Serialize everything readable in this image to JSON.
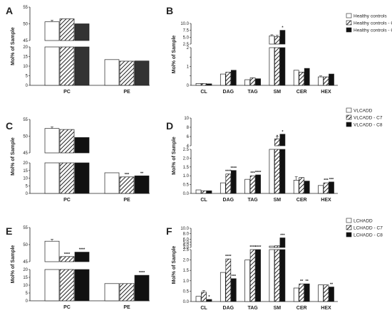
{
  "chart_data": [
    {
      "panel": "A",
      "type": "bar",
      "ylabel": "Mol% of Sample",
      "categories": [
        "PC",
        "PE"
      ],
      "series": [
        {
          "name": "",
          "values": [
            50.6,
            13.4
          ],
          "errors": [
            0.5,
            0
          ]
        },
        {
          "name": "",
          "values": [
            51.5,
            12.6
          ],
          "errors": [
            0,
            0
          ]
        },
        {
          "name": "",
          "values": [
            50.0,
            12.7
          ],
          "errors": [
            0,
            0
          ]
        }
      ],
      "ybreak": {
        "lower": [
          0,
          20
        ],
        "upper": [
          45,
          55
        ]
      },
      "lower_ticks": [
        0,
        5,
        10,
        15,
        20
      ],
      "upper_ticks": [
        45,
        50,
        55
      ],
      "stars": [
        [
          "",
          ""
        ],
        [
          "",
          ""
        ],
        [
          "",
          ""
        ]
      ]
    },
    {
      "panel": "B",
      "type": "bar",
      "ylabel": "Mol% of Sample",
      "categories": [
        "CL",
        "DAG",
        "TAG",
        "SM",
        "CER",
        "HEX"
      ],
      "series": [
        {
          "name": "Healthy controls",
          "values": [
            0.1,
            0.6,
            0.3,
            5.5,
            0.8,
            0.45
          ],
          "errors": [
            0,
            0,
            0,
            0.4,
            0,
            0.05
          ]
        },
        {
          "name": "Healthy controls - C7",
          "values": [
            0.1,
            0.7,
            0.4,
            5.2,
            0.7,
            0.45
          ],
          "errors": [
            0,
            0,
            0,
            0.5,
            0,
            0
          ]
        },
        {
          "name": "Healthy controls - C8",
          "values": [
            0.08,
            0.8,
            0.35,
            7.5,
            0.9,
            0.6
          ],
          "errors": [
            0,
            0,
            0,
            0,
            0,
            0
          ]
        }
      ],
      "ybreak": {
        "lower": [
          0,
          2
        ],
        "upper": [
          2.5,
          10
        ]
      },
      "lower_ticks": [
        0,
        0.5,
        1,
        1.5,
        2
      ],
      "upper_ticks": [
        2.5,
        5,
        7.5,
        10
      ],
      "lower_tick_labels": [
        "0",
        "",
        "1",
        "",
        "2"
      ],
      "upper_tick_labels": [
        "2.5",
        "5.0",
        "7.5",
        "10.0"
      ],
      "stars": [
        [
          "",
          "",
          "",
          "",
          "",
          ""
        ],
        [
          "",
          "",
          "",
          "",
          "",
          ""
        ],
        [
          "",
          "",
          "",
          "*",
          "",
          ""
        ]
      ]
    },
    {
      "panel": "C",
      "type": "bar",
      "ylabel": "Mol% of Sample",
      "categories": [
        "PC",
        "PE"
      ],
      "series": [
        {
          "name": "",
          "values": [
            52.3,
            13.5
          ],
          "errors": [
            0.5,
            0
          ]
        },
        {
          "name": "",
          "values": [
            52.0,
            10.8
          ],
          "errors": [
            0,
            0
          ]
        },
        {
          "name": "",
          "values": [
            49.6,
            11.5
          ],
          "errors": [
            0,
            0
          ]
        }
      ],
      "ybreak": {
        "lower": [
          0,
          20
        ],
        "upper": [
          45,
          55
        ]
      },
      "lower_ticks": [
        0,
        5,
        10,
        15,
        20
      ],
      "upper_ticks": [
        45,
        50,
        55
      ],
      "stars": [
        [
          "",
          ""
        ],
        [
          "",
          "***"
        ],
        [
          "",
          "**"
        ]
      ]
    },
    {
      "panel": "D",
      "type": "bar",
      "ylabel": "Mol% of Sample",
      "categories": [
        "CL",
        "DAG",
        "TAG",
        "SM",
        "CER",
        "HEX"
      ],
      "series": [
        {
          "name": "VLCADD",
          "values": [
            0.2,
            0.6,
            0.8,
            4.0,
            0.75,
            0.45
          ],
          "errors": [
            0,
            0,
            0,
            0,
            0.2,
            0
          ]
        },
        {
          "name": "VLCADD - C7",
          "values": [
            0.15,
            1.1,
            1.0,
            5.5,
            0.9,
            0.6
          ],
          "errors": [
            0,
            0,
            0,
            0.5,
            0,
            0
          ]
        },
        {
          "name": "VLCADD - C8",
          "values": [
            0.15,
            1.3,
            1.05,
            6.5,
            0.7,
            0.65
          ],
          "errors": [
            0,
            0,
            0,
            0,
            0,
            0
          ]
        }
      ],
      "ybreak": {
        "lower": [
          0,
          2.5
        ],
        "upper": [
          2.5,
          10
        ]
      },
      "lower_ticks": [
        0,
        0.5,
        1,
        1.5,
        2,
        2.5
      ],
      "upper_ticks": [
        4,
        6,
        8,
        10
      ],
      "lower_tick_labels": [
        "0.0",
        "0.5",
        "1.0",
        "1.5",
        "2.0",
        "2.5"
      ],
      "upper_tick_labels": [
        "4",
        "6",
        "8",
        "10"
      ],
      "stars": [
        [
          "",
          "",
          "",
          "",
          "",
          ""
        ],
        [
          "",
          "****",
          "***",
          "*",
          "",
          "***"
        ],
        [
          "",
          "****",
          "****",
          "*",
          "",
          "***"
        ]
      ]
    },
    {
      "panel": "E",
      "type": "bar",
      "ylabel": "Mol% of Sample",
      "categories": [
        "PC",
        "PE"
      ],
      "series": [
        {
          "name": "",
          "values": [
            51.0,
            11.0
          ],
          "errors": [
            0.6,
            0
          ]
        },
        {
          "name": "",
          "values": [
            46.5,
            11.0
          ],
          "errors": [
            0,
            0
          ]
        },
        {
          "name": "",
          "values": [
            47.8,
            16.3
          ],
          "errors": [
            0,
            0
          ]
        }
      ],
      "ybreak": {
        "lower": [
          0,
          20
        ],
        "upper": [
          45,
          55
        ]
      },
      "lower_ticks": [
        0,
        5,
        10,
        15,
        20
      ],
      "upper_ticks": [
        45,
        50,
        55
      ],
      "stars": [
        [
          "",
          ""
        ],
        [
          "****",
          ""
        ],
        [
          "****",
          "****"
        ]
      ]
    },
    {
      "panel": "F",
      "type": "bar",
      "ylabel": "Mol% of Sample",
      "categories": [
        "CL",
        "DAG",
        "TAG",
        "SM",
        "CER",
        "HEX"
      ],
      "series": [
        {
          "name": "LCHADD",
          "values": [
            0.25,
            1.4,
            2.0,
            3.5,
            0.65,
            0.8
          ],
          "errors": [
            0,
            0,
            0,
            0,
            0,
            0
          ]
        },
        {
          "name": "LCHADD - C7",
          "values": [
            0.45,
            2.05,
            2.5,
            3.6,
            0.85,
            0.8
          ],
          "errors": [
            0.08,
            0,
            0,
            0,
            0,
            0
          ]
        },
        {
          "name": "LCHADD - C8",
          "values": [
            0.1,
            1.1,
            2.5,
            6.5,
            0.85,
            0.7
          ],
          "errors": [
            0,
            0,
            0,
            0,
            0,
            0
          ]
        }
      ],
      "ybreak": {
        "lower": [
          0,
          2.5
        ],
        "upper": [
          2.5,
          10
        ]
      },
      "lower_ticks": [
        0,
        0.5,
        1,
        1.5,
        2,
        2.5
      ],
      "upper_ticks": [
        3,
        4,
        5,
        6,
        8,
        10
      ],
      "lower_tick_labels": [
        "0.0",
        "0.5",
        "1.0",
        "1.5",
        "2.0",
        "2.5"
      ],
      "upper_tick_labels": [
        "3.0",
        "4.0",
        "5.0",
        "6.0",
        "8.0",
        "10.0"
      ],
      "stars": [
        [
          "",
          "",
          "",
          "",
          "",
          ""
        ],
        [
          "",
          "****",
          "****",
          "",
          "**",
          ""
        ],
        [
          "*",
          "***",
          "****",
          "***",
          "**",
          "**"
        ]
      ]
    }
  ],
  "fills": {
    "open": "#ffffff",
    "black": "#111111",
    "dark": "#333333",
    "stroke": "#222222"
  }
}
